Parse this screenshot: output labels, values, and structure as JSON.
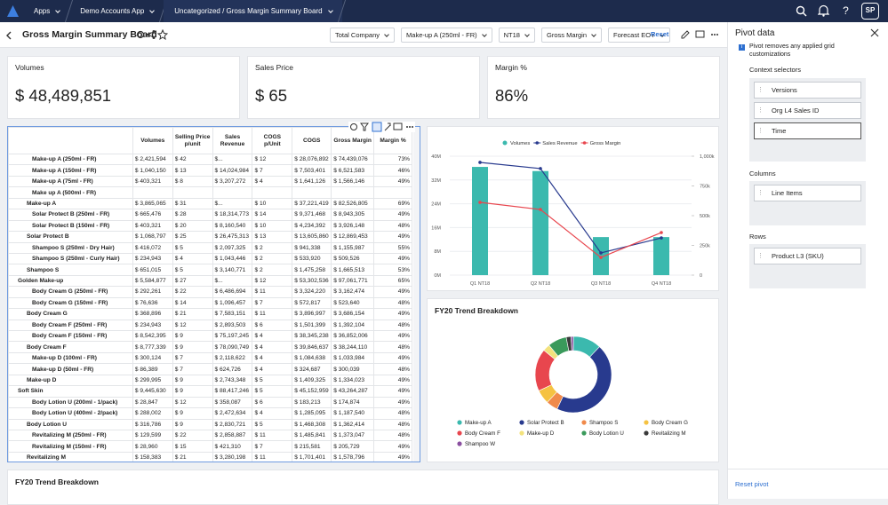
{
  "topbar": {
    "tabs": [
      "Apps",
      "Demo Accounts App",
      "Uncategorized / Gross Margin Summary Board"
    ],
    "avatar": "SP"
  },
  "header": {
    "title": "Gross Margin Summary Board",
    "filters": [
      "Total Company",
      "Make-up A (250ml - FR)",
      "NT18",
      "Gross Margin",
      "Forecast EOY"
    ],
    "reset": "Reset"
  },
  "kpis": [
    {
      "label": "Volumes",
      "value": "$ 48,489,851"
    },
    {
      "label": "Sales Price",
      "value": "$ 65"
    },
    {
      "label": "Margin %",
      "value": "86%"
    }
  ],
  "table": {
    "columns": [
      "Volumes",
      "Selling Price p/unit",
      "Sales Revenue",
      "COGS p/Unit",
      "COGS",
      "Gross Margin",
      "Margin %"
    ],
    "rows": [
      [
        "Make-up A (250ml - FR)",
        "$ 2,421,594",
        "$ 42",
        "$...",
        "$ 12",
        "$ 28,076,892",
        "$ 74,439,076",
        "73%"
      ],
      [
        "Make-up A (150ml - FR)",
        "$ 1,040,150",
        "$ 13",
        "$ 14,024,984",
        "$ 7",
        "$ 7,503,401",
        "$ 6,521,583",
        "46%"
      ],
      [
        "Make-up A (75ml - FR)",
        "$ 403,321",
        "$ 8",
        "$ 3,207,272",
        "$ 4",
        "$ 1,641,126",
        "$ 1,566,146",
        "49%"
      ],
      [
        "Make up A (500ml - FR)",
        null,
        null,
        null,
        null,
        null,
        null,
        null
      ],
      [
        "Make-up A",
        "$ 3,865,065",
        "$ 31",
        "$...",
        "$ 10",
        "$ 37,221,419",
        "$ 82,526,805",
        "69%"
      ],
      [
        "Solar Protect B (250ml - FR)",
        "$ 665,476",
        "$ 28",
        "$ 18,314,773",
        "$ 14",
        "$ 9,371,468",
        "$ 8,943,305",
        "49%"
      ],
      [
        "Solar Protect B (150ml - FR)",
        "$ 403,321",
        "$ 20",
        "$ 8,160,540",
        "$ 10",
        "$ 4,234,392",
        "$ 3,926,148",
        "48%"
      ],
      [
        "Solar Protect B",
        "$ 1,068,797",
        "$ 25",
        "$ 26,475,313",
        "$ 13",
        "$ 13,605,860",
        "$ 12,869,453",
        "49%"
      ],
      [
        "Shampoo S (250ml - Dry Hair)",
        "$ 416,072",
        "$ 5",
        "$ 2,097,325",
        "$ 2",
        "$ 941,338",
        "$ 1,155,987",
        "55%"
      ],
      [
        "Shampoo S (250ml - Curly Hair)",
        "$ 234,943",
        "$ 4",
        "$ 1,043,446",
        "$ 2",
        "$ 533,920",
        "$ 509,526",
        "49%"
      ],
      [
        "Shampoo S",
        "$ 651,015",
        "$ 5",
        "$ 3,140,771",
        "$ 2",
        "$ 1,475,258",
        "$ 1,665,513",
        "53%"
      ],
      [
        "Golden Make-up",
        "$ 5,584,877",
        "$ 27",
        "$...",
        "$ 12",
        "$ 53,302,536",
        "$ 97,061,771",
        "65%"
      ],
      [
        "Body Cream G (250ml - FR)",
        "$ 292,261",
        "$ 22",
        "$ 6,486,694",
        "$ 11",
        "$ 3,324,220",
        "$ 3,162,474",
        "49%"
      ],
      [
        "Body Cream G (150ml - FR)",
        "$ 76,636",
        "$ 14",
        "$ 1,096,457",
        "$ 7",
        "$ 572,817",
        "$ 523,640",
        "48%"
      ],
      [
        "Body Cream G",
        "$ 368,896",
        "$ 21",
        "$ 7,583,151",
        "$ 11",
        "$ 3,896,997",
        "$ 3,686,154",
        "49%"
      ],
      [
        "Body Cream F (250ml - FR)",
        "$ 234,943",
        "$ 12",
        "$ 2,893,503",
        "$ 6",
        "$ 1,501,399",
        "$ 1,392,104",
        "48%"
      ],
      [
        "Body Cream F (150ml - FR)",
        "$ 8,542,395",
        "$ 9",
        "$ 75,197,245",
        "$ 4",
        "$ 38,345,238",
        "$ 36,852,006",
        "49%"
      ],
      [
        "Body Cream F",
        "$ 8,777,339",
        "$ 9",
        "$ 78,090,749",
        "$ 4",
        "$ 39,846,637",
        "$ 38,244,110",
        "48%"
      ],
      [
        "Make-up D (100ml - FR)",
        "$ 300,124",
        "$ 7",
        "$ 2,118,622",
        "$ 4",
        "$ 1,084,638",
        "$ 1,033,984",
        "49%"
      ],
      [
        "Make-up D (50ml - FR)",
        "$ 86,389",
        "$ 7",
        "$ 624,726",
        "$ 4",
        "$ 324,687",
        "$ 300,039",
        "48%"
      ],
      [
        "Make-up D",
        "$ 299,995",
        "$ 9",
        "$ 2,743,348",
        "$ 5",
        "$ 1,409,325",
        "$ 1,334,023",
        "49%"
      ],
      [
        "Soft Skin",
        "$ 9,445,630",
        "$ 9",
        "$ 88,417,246",
        "$ 5",
        "$ 45,152,959",
        "$ 43,264,287",
        "49%"
      ],
      [
        "Body Lotion U (200ml - 1/pack)",
        "$ 28,847",
        "$ 12",
        "$ 358,087",
        "$ 6",
        "$ 183,213",
        "$ 174,874",
        "49%"
      ],
      [
        "Body Lotion U (400ml - 2/pack)",
        "$ 288,002",
        "$ 9",
        "$ 2,472,634",
        "$ 4",
        "$ 1,285,095",
        "$ 1,187,540",
        "48%"
      ],
      [
        "Body Lotion U",
        "$ 316,786",
        "$ 9",
        "$ 2,830,721",
        "$ 5",
        "$ 1,468,308",
        "$ 1,362,414",
        "48%"
      ],
      [
        "Revitalizing M (250ml - FR)",
        "$ 129,599",
        "$ 22",
        "$ 2,858,887",
        "$ 11",
        "$ 1,485,841",
        "$ 1,373,047",
        "48%"
      ],
      [
        "Revitalizing M (150ml - FR)",
        "$ 28,960",
        "$ 15",
        "$ 421,310",
        "$ 7",
        "$ 215,581",
        "$ 205,729",
        "49%"
      ],
      [
        "Revitalizing M",
        "$ 158,383",
        "$ 21",
        "$ 3,280,198",
        "$ 11",
        "$ 1,701,401",
        "$ 1,578,796",
        "49%"
      ]
    ]
  },
  "chart_data": [
    {
      "type": "combo",
      "categories": [
        "Q1 NT18",
        "Q2 NT18",
        "Q3 NT18",
        "Q4 NT18"
      ],
      "ylim": [
        0,
        40000000
      ],
      "yticks": [
        {
          "value": 0,
          "label": "0M"
        },
        {
          "value": 8000000,
          "label": "8M"
        },
        {
          "value": 16000000,
          "label": "16M"
        },
        {
          "value": 24000000,
          "label": "24M"
        },
        {
          "value": 32000000,
          "label": "32M"
        },
        {
          "value": 40000000,
          "label": "40M"
        }
      ],
      "y2lim": [
        0,
        1000000
      ],
      "y2ticks": [
        0,
        {
          "value": 250000,
          "label": "250k"
        },
        {
          "value": 500000,
          "label": "500k"
        },
        {
          "value": 750000,
          "label": "750k"
        },
        {
          "value": 1000000,
          "label": "1,000k"
        }
      ],
      "series": [
        {
          "name": "Volumes",
          "kind": "bar",
          "color": "#3bb9ae",
          "values": [
            36400000,
            35000000,
            12800000,
            12800000
          ]
        },
        {
          "name": "Sales Revenue",
          "kind": "line",
          "axis": "y2",
          "color": "#283a8e",
          "values": [
            948000,
            896000,
            187000,
            313000
          ]
        },
        {
          "name": "Gross Margin",
          "kind": "line",
          "axis": "y2",
          "color": "#e8464e",
          "values": [
            612000,
            552000,
            149000,
            358000
          ]
        }
      ]
    },
    {
      "type": "pie",
      "title": "FY20 Trend Breakdown",
      "categories": [
        "Make-up A",
        "Solar Protect B",
        "Shampoo S",
        "Body Cream G",
        "Body Cream F",
        "Make-up D",
        "Body Lotion U",
        "Revitalizing M",
        "Shampoo W"
      ],
      "values": [
        12,
        45,
        5,
        6,
        18,
        3,
        8,
        2,
        1
      ],
      "colors": [
        "#3bb9ae",
        "#283a8e",
        "#f08a4b",
        "#f5c242",
        "#e8464e",
        "#f3e27c",
        "#3a9a5b",
        "#3a3a3a",
        "#8a4fa0"
      ]
    }
  ],
  "bottom_card": {
    "title": "FY20 Trend Breakdown"
  },
  "pivot": {
    "title": "Pivot data",
    "note": "Pivot removes any applied grid customizations",
    "sections": [
      {
        "title": "Context selectors",
        "items": [
          "Versions",
          "Org L4 Sales ID",
          "Time"
        ]
      },
      {
        "title": "Columns",
        "items": [
          "Line Items"
        ]
      },
      {
        "title": "Rows",
        "items": [
          "Product L3 (SKU)"
        ]
      }
    ],
    "reset": "Reset pivot"
  }
}
